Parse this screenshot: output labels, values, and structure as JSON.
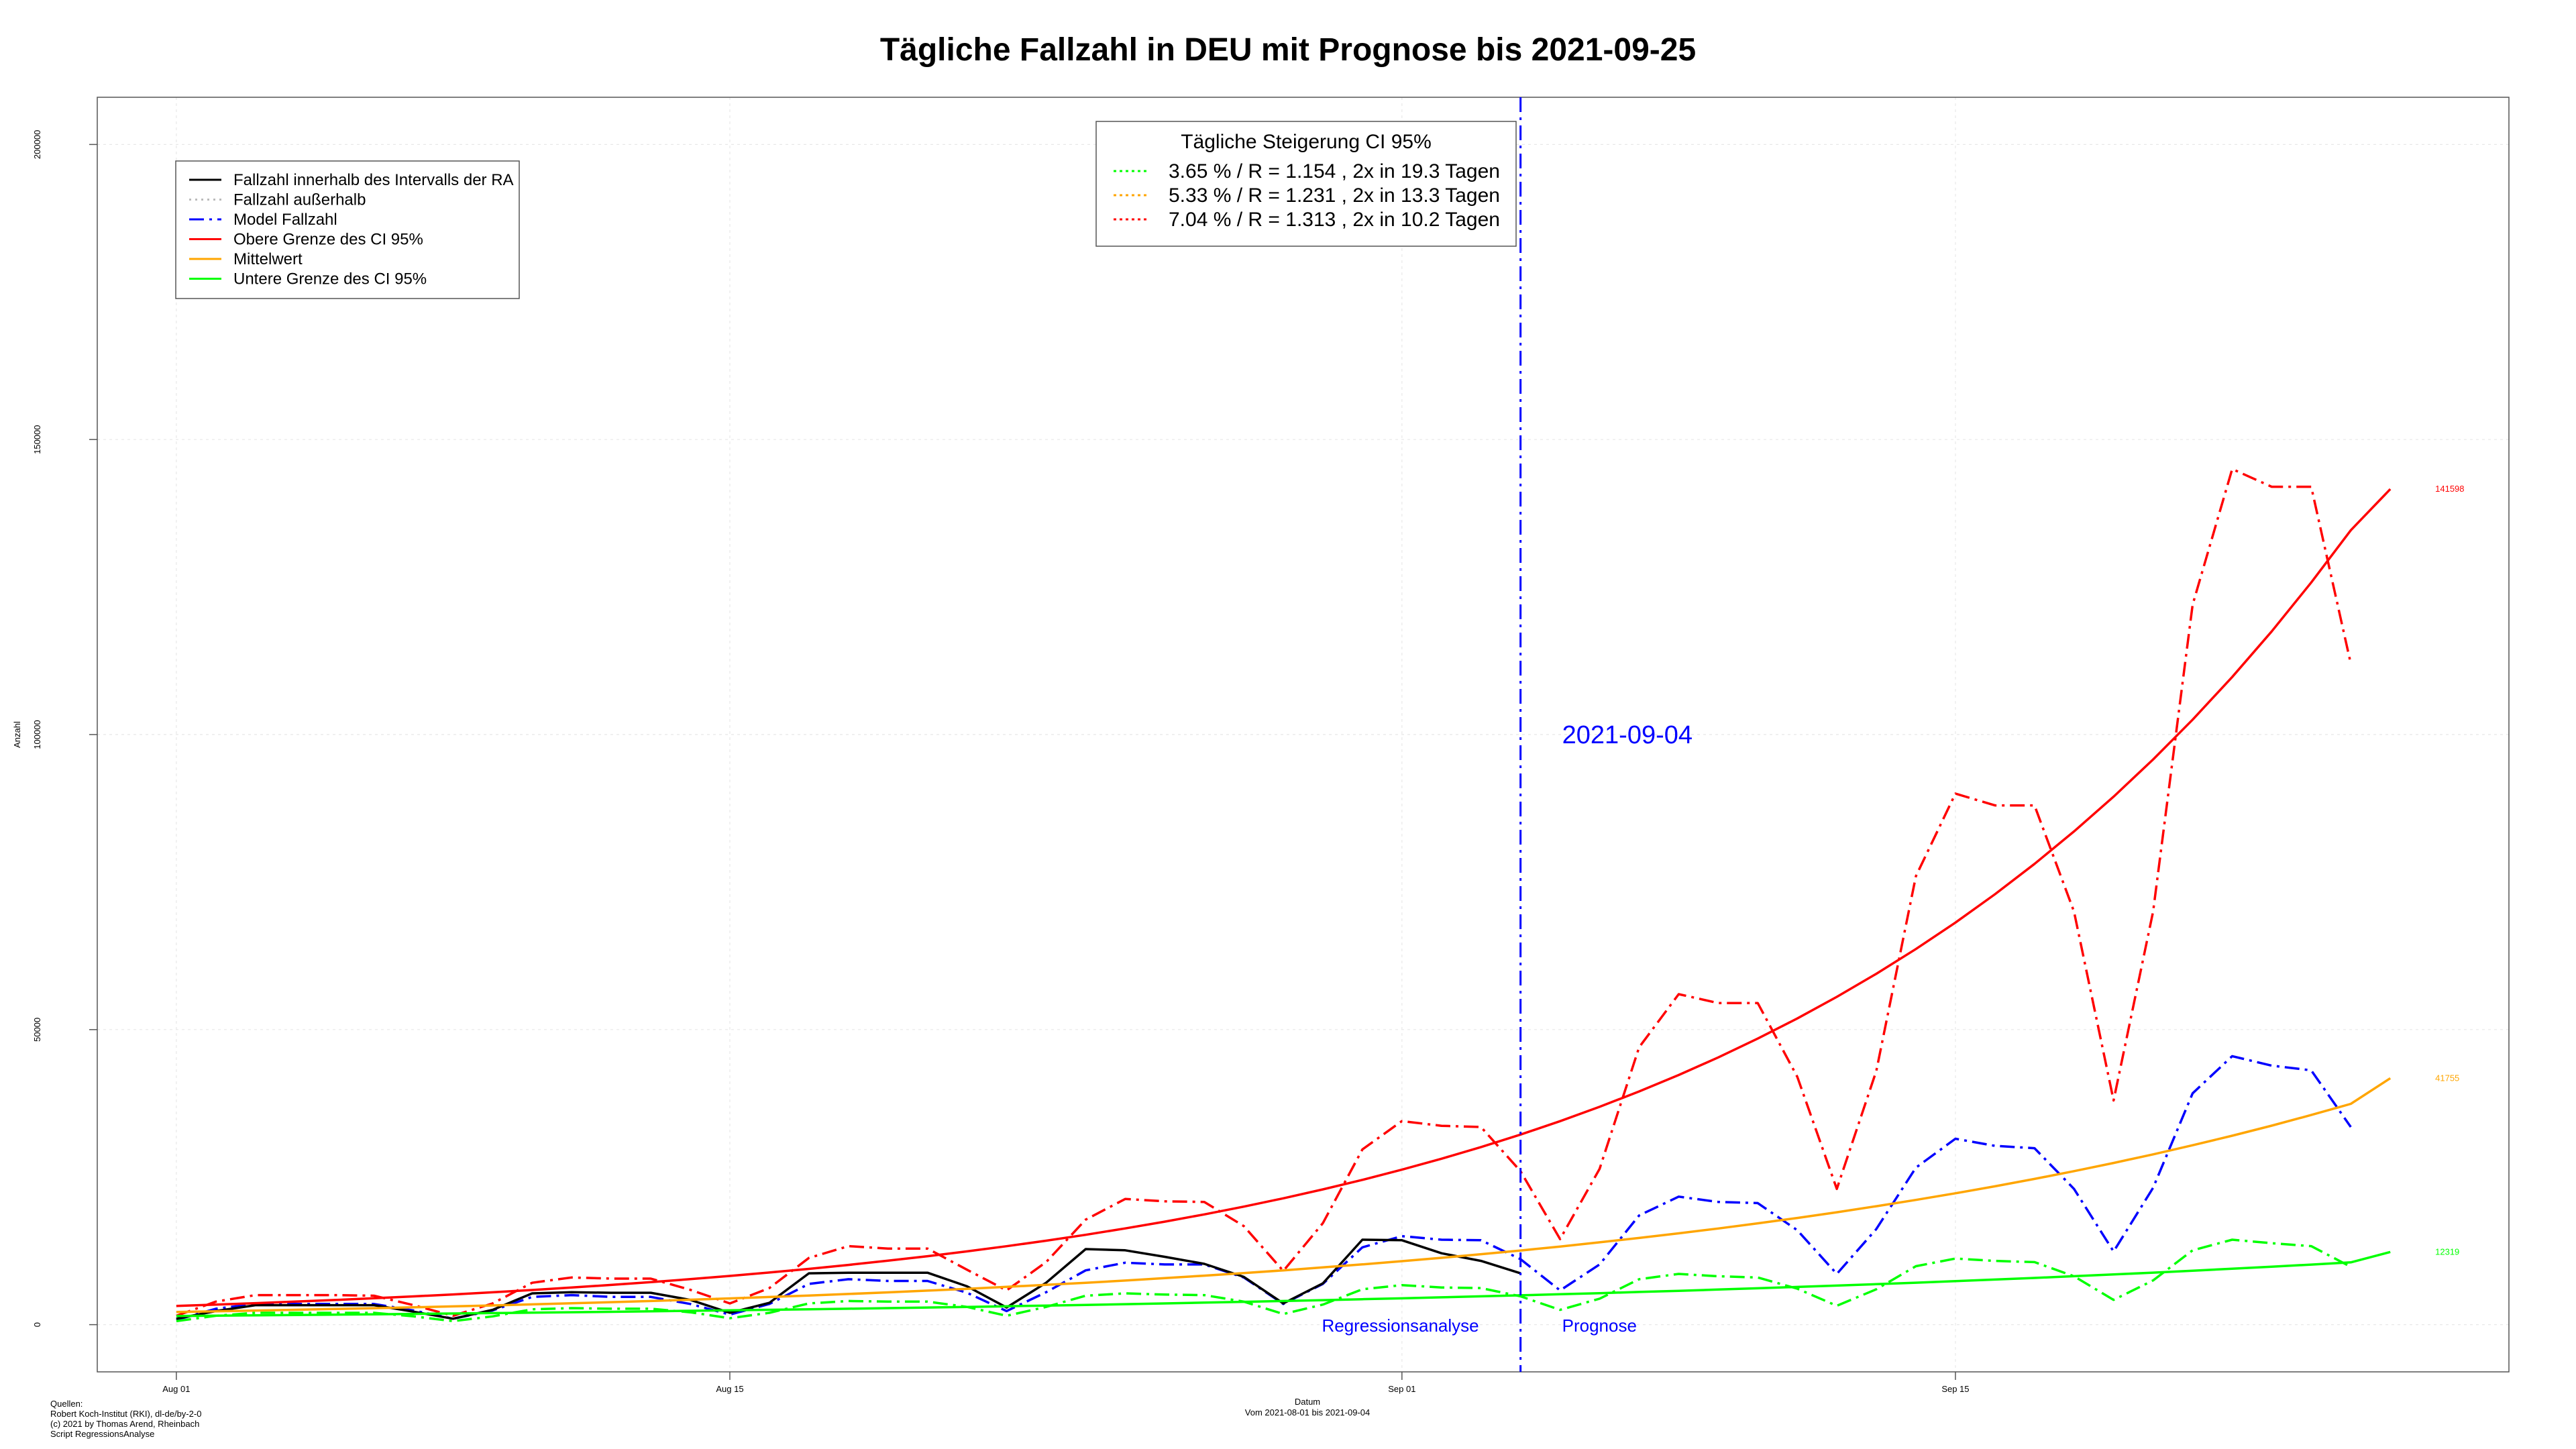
{
  "chart_data": {
    "type": "line",
    "title": "Tägliche Fallzahl in DEU mit Prognose bis 2021-09-25",
    "xlabel": "Datum",
    "xlabel_sub": "Vom 2021-08-01 bis 2021-09-04",
    "ylabel": "Anzahl",
    "x_start": "2021-08-01",
    "x_end": "2021-09-27",
    "xlim": [
      "2021-07-30",
      "2021-09-29"
    ],
    "ylim": [
      -8000,
      208000
    ],
    "x_ticks": [
      {
        "date": "2021-08-01",
        "label": "Aug 01"
      },
      {
        "date": "2021-08-15",
        "label": "Aug 15"
      },
      {
        "date": "2021-09-01",
        "label": "Sep 01"
      },
      {
        "date": "2021-09-15",
        "label": "Sep 15"
      }
    ],
    "y_ticks": [
      0,
      50000,
      100000,
      150000,
      200000
    ],
    "grid": true,
    "legend": {
      "placement": "top-left",
      "entries": [
        {
          "label": "Fallzahl innerhalb des Intervalls der RA",
          "color": "#000000",
          "dash": "solid"
        },
        {
          "label": "Fallzahl außerhalb",
          "color": "#bbbbbb",
          "dash": "dotted"
        },
        {
          "label": "Model Fallzahl",
          "color": "#0000ff",
          "dash": "dashdot"
        },
        {
          "label": "Obere Grenze des CI 95%",
          "color": "#ff0000",
          "dash": "solid"
        },
        {
          "label": "Mittelwert",
          "color": "#ffa500",
          "dash": "solid"
        },
        {
          "label": "Untere Grenze des CI 95%",
          "color": "#00ff00",
          "dash": "solid"
        }
      ]
    },
    "ci_box": {
      "placement": "top-center",
      "title": "Tägliche Steigerung CI  95%",
      "rows": [
        {
          "text": "3.65 % / R = 1.154 , 2x in 19.3 Tagen",
          "color": "#00ff00"
        },
        {
          "text": "5.33 % / R = 1.231 , 2x in 13.3 Tagen",
          "color": "#ffa500"
        },
        {
          "text": "7.04 % / R = 1.313 , 2x in 10.2 Tagen",
          "color": "#ff0000"
        }
      ]
    },
    "marker": {
      "date": "2021-09-04",
      "label": "2021-09-04",
      "color": "#0000ff",
      "left_label": "Regressionsanalyse",
      "right_label": "Prognose"
    },
    "series": [
      {
        "name": "Fallzahl innerhalb des Intervalls der RA",
        "color": "#000000",
        "style": "solid",
        "start": "2021-08-01",
        "values": [
          1000,
          2300,
          3300,
          3300,
          3300,
          3300,
          2200,
          1000,
          2500,
          5300,
          5500,
          5400,
          5400,
          4200,
          2000,
          3700,
          8700,
          8800,
          8800,
          8800,
          6500,
          2900,
          7100,
          12800,
          12600,
          11500,
          10300,
          8100,
          3600,
          7000,
          14400,
          14300,
          12100,
          10800,
          8700
        ]
      },
      {
        "name": "Model Fallzahl",
        "color": "#0000ff",
        "style": "dashdot",
        "start": "2021-08-01",
        "values": [
          800,
          2700,
          3500,
          3500,
          3500,
          3500,
          2400,
          1000,
          2400,
          4700,
          5000,
          4700,
          4700,
          3500,
          1700,
          3500,
          6900,
          7700,
          7400,
          7400,
          5400,
          2300,
          5500,
          9200,
          10500,
          10200,
          10200,
          8000,
          3500,
          6900,
          13100,
          15000,
          14400,
          14300,
          11100,
          5800,
          10200,
          18500,
          21700,
          20800,
          20600,
          16000,
          8600,
          16200,
          26600,
          31500,
          30300,
          29900,
          23000,
          12400,
          23200,
          39200,
          45500,
          43900,
          43100,
          33500
        ]
      },
      {
        "name": "Obere Grenze des CI 95%",
        "color": "#ff0000",
        "style": "dashdot",
        "start": "2021-08-01",
        "values": [
          1500,
          3900,
          5000,
          5000,
          5000,
          4900,
          3300,
          1500,
          3600,
          7100,
          8000,
          7800,
          7800,
          5900,
          3600,
          6200,
          11300,
          13300,
          12900,
          12900,
          9300,
          5800,
          10600,
          17800,
          21300,
          20900,
          20800,
          16700,
          9100,
          17200,
          29700,
          34500,
          33700,
          33500,
          26000,
          14500,
          26400,
          47000,
          56000,
          54500,
          54500,
          42000,
          23000,
          43000,
          76000,
          90000,
          88000,
          88000,
          70000,
          38000,
          70000,
          122000,
          145000,
          142000,
          142000,
          112000
        ]
      },
      {
        "name": "Untere Grenze des CI 95%",
        "color": "#00ff00",
        "style": "dashdot",
        "start": "2021-08-01",
        "values": [
          600,
          1500,
          2000,
          2000,
          2000,
          2000,
          1400,
          600,
          1400,
          2600,
          2800,
          2700,
          2700,
          2100,
          1100,
          2000,
          3600,
          4000,
          3900,
          3900,
          3000,
          1500,
          3000,
          4900,
          5300,
          5100,
          5000,
          3900,
          1800,
          3400,
          6000,
          6700,
          6300,
          6200,
          4800,
          2500,
          4400,
          7700,
          8600,
          8200,
          8000,
          6100,
          3200,
          6000,
          9900,
          11200,
          10800,
          10600,
          8200,
          4200,
          7500,
          12600,
          14400,
          13800,
          13300,
          9800
        ]
      },
      {
        "name": "Obere Grenze des CI 95%",
        "color": "#ff0000",
        "style": "solid",
        "start": "2021-08-01",
        "values": [
          3180,
          3405,
          3645,
          3902,
          4177,
          4471,
          4786,
          5123,
          5484,
          5871,
          6285,
          6728,
          7202,
          7709,
          8252,
          8834,
          9456,
          10123,
          10836,
          11599,
          12417,
          13292,
          14228,
          15231,
          16304,
          17453,
          18683,
          20000,
          21409,
          22918,
          24533,
          26262,
          28113,
          30094,
          32215,
          34485,
          36916,
          39517,
          42302,
          45283,
          48474,
          51890,
          55547,
          59462,
          63652,
          68138,
          72940,
          78080,
          83583,
          89473,
          95779,
          102528,
          109754,
          117488,
          125768,
          134631,
          141598
        ]
      },
      {
        "name": "Mittelwert",
        "color": "#ffa500",
        "style": "solid",
        "start": "2021-08-01",
        "values": [
          2150,
          2265,
          2386,
          2513,
          2647,
          2788,
          2937,
          3093,
          3258,
          3432,
          3615,
          3807,
          4010,
          4224,
          4449,
          4686,
          4936,
          5199,
          5476,
          5768,
          6076,
          6400,
          6741,
          7100,
          7478,
          7877,
          8297,
          8739,
          9205,
          9696,
          10213,
          10757,
          11331,
          11935,
          12571,
          13241,
          13947,
          14691,
          15474,
          16299,
          17168,
          18083,
          19047,
          20063,
          21133,
          22259,
          23446,
          24696,
          26013,
          27400,
          28861,
          30400,
          32020,
          33727,
          35526,
          37420,
          41755
        ]
      },
      {
        "name": "Untere Grenze des CI 95%",
        "color": "#00ff00",
        "style": "solid",
        "start": "2021-08-01",
        "values": [
          1470,
          1524,
          1580,
          1637,
          1697,
          1759,
          1823,
          1889,
          1958,
          2030,
          2104,
          2180,
          2260,
          2342,
          2428,
          2516,
          2608,
          2703,
          2802,
          2904,
          3010,
          3120,
          3233,
          3351,
          3474,
          3600,
          3732,
          3868,
          4009,
          4155,
          4307,
          4464,
          4627,
          4796,
          4971,
          5152,
          5340,
          5535,
          5737,
          5946,
          6163,
          6388,
          6621,
          6862,
          7113,
          7372,
          7641,
          7920,
          8209,
          8508,
          8819,
          9141,
          9474,
          9820,
          10178,
          10550,
          12319
        ]
      }
    ],
    "end_labels": [
      {
        "text": "141598",
        "value": 141598,
        "color": "#ff0000"
      },
      {
        "text": "41755",
        "value": 41755,
        "color": "#ffa500"
      },
      {
        "text": "12319",
        "value": 12319,
        "color": "#00ff00"
      }
    ]
  },
  "footer": {
    "sources": [
      "Quellen:",
      "Robert Koch-Institut (RKI), dl-de/by-2-0",
      "(c) 2021 by Thomas Arend, Rheinbach",
      "Script RegressionsAnalyse"
    ]
  }
}
